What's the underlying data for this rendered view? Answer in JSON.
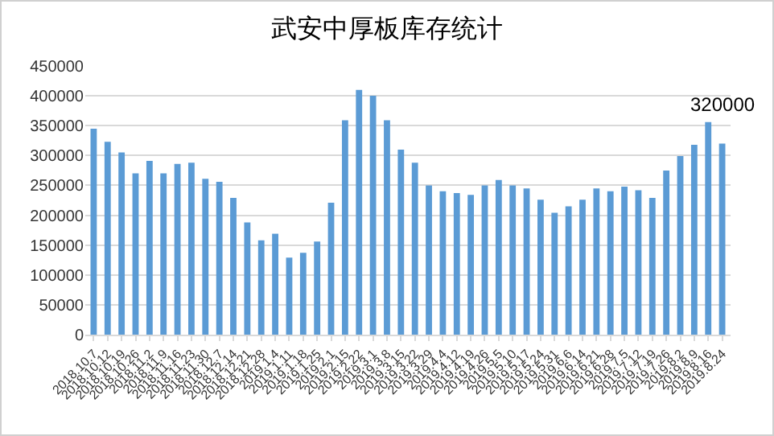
{
  "chart_data": {
    "type": "bar",
    "title": "武安中厚板库存统计",
    "categories": [
      "2018.10.7",
      "2018.10.12",
      "2018.10.19",
      "2018.10.26",
      "2018.11.2",
      "2018.11.9",
      "2018.11.16",
      "2018.11.23",
      "2018.11.30",
      "2018.12.7",
      "2018.12.14",
      "2018.12.21",
      "2018.12.28",
      "2019.1.4",
      "2019.1.11",
      "2019.1.18",
      "2019.1.25",
      "2019.2.1",
      "2019.2.15",
      "2019.2.22",
      "2019.3.1",
      "2019.3.8",
      "2019.3.15",
      "2019.3.22",
      "2019.3.29",
      "2019.4.4",
      "2019.4.12",
      "2019.4.19",
      "2019.4.26",
      "2019.5.5",
      "2019.5.10",
      "2019.5.17",
      "2019.5.24",
      "2019.5.31",
      "2019.6.6",
      "2019.6.14",
      "2019.6.21",
      "2019.6.28",
      "2019.7.5",
      "2019.7.12",
      "2019.7.19",
      "2019.7.26",
      "2019.8.2",
      "2019.8.9",
      "2019.8.16",
      "2019.8.24"
    ],
    "values": [
      345000,
      323000,
      305000,
      270000,
      291000,
      270000,
      286000,
      288000,
      261000,
      256000,
      229000,
      188000,
      158000,
      169000,
      129000,
      137000,
      156000,
      221000,
      359000,
      410000,
      400000,
      359000,
      310000,
      288000,
      250000,
      240000,
      237000,
      234000,
      250000,
      259000,
      250000,
      245000,
      226000,
      204000,
      215000,
      226000,
      245000,
      240000,
      248000,
      242000,
      229000,
      275000,
      299000,
      318000,
      356000,
      320000
    ],
    "value_labels": [
      null,
      null,
      null,
      null,
      null,
      null,
      null,
      null,
      null,
      null,
      null,
      null,
      null,
      null,
      null,
      null,
      null,
      null,
      null,
      null,
      null,
      null,
      null,
      null,
      null,
      null,
      null,
      null,
      null,
      null,
      null,
      null,
      null,
      null,
      null,
      null,
      null,
      null,
      null,
      null,
      null,
      null,
      null,
      null,
      null,
      "320000"
    ],
    "color": "#5b9bd5",
    "ylim": [
      0,
      450000
    ],
    "yticks": [
      0,
      50000,
      100000,
      150000,
      200000,
      250000,
      300000,
      350000,
      400000,
      450000
    ],
    "grid": "y"
  }
}
